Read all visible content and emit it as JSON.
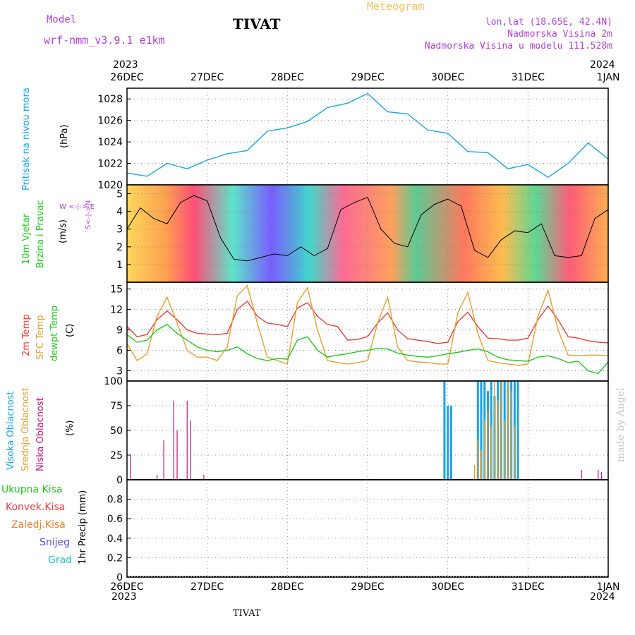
{
  "header": {
    "model_label": "Model",
    "model_name": "wrf-nmm_v3.9.1 e1km",
    "station": "TIVAT",
    "meteogram": "Meteogram",
    "lonlat": "lon,lat (18.65E, 42.4N)",
    "elevation": "Nadmorska Visina 2m",
    "model_elevation": "Nadmorska Visina u modelu 111.528m",
    "footer_station": "TIVAT",
    "credit": "made by Angel"
  },
  "time_axis": {
    "top_year_left": "2023",
    "top_year_right": "2024",
    "bottom_year_left": "2023",
    "bottom_year_right": "2024",
    "labels": [
      "26DEC",
      "27DEC",
      "28DEC",
      "29DEC",
      "30DEC",
      "31DEC",
      "1JAN"
    ]
  },
  "panel_labels": {
    "pressure": [
      "Pritisak na nivou mora",
      "(hPa)"
    ],
    "wind": [
      "10m Vjetar",
      "Brzina i Pravac",
      "(m/s)"
    ],
    "wind_compass": "W <-|-> E",
    "wind_compass_ns": "S<-|->N",
    "temp": [
      "2m Temp",
      "SFC Temp",
      "dewpt Temp",
      "(C)"
    ],
    "cloud": [
      "Visoka Oblacnost",
      "Srednja Oblacnost",
      "Niska Oblacnost",
      "(%)"
    ],
    "precip_legend": [
      "Ukupna Kisa",
      "Konvek.Kisa",
      "Zaledj.Kisa",
      "Snijeg",
      "Grad"
    ],
    "precip_axis": "1hr Precip (mm)"
  },
  "colors": {
    "pressure": "#1aa3e6",
    "temp2m": "#e8403c",
    "sfc": "#e0a030",
    "dewpt": "#22c822",
    "cloud_high": "#1aa3e6",
    "cloud_mid": "#e0a030",
    "cloud_low": "#c0157a",
    "model_label": "#b040d0",
    "meteogram": "#f0c060"
  },
  "chart_data": [
    {
      "type": "line",
      "name": "pressure",
      "ylim": [
        1020,
        1029
      ],
      "yticks": [
        "1020",
        "1022",
        "1024",
        "1026",
        "1028"
      ],
      "x_hours": [
        0,
        6,
        12,
        18,
        24,
        30,
        36,
        42,
        48,
        54,
        60,
        66,
        72,
        78,
        84,
        90,
        96,
        102,
        108,
        114,
        120,
        126,
        132,
        138,
        144
      ],
      "series": [
        {
          "values": [
            1021.1,
            1020.8,
            1022.0,
            1021.5,
            1022.3,
            1022.9,
            1023.2,
            1025.0,
            1025.3,
            1025.9,
            1027.2,
            1027.6,
            1028.5,
            1026.8,
            1026.6,
            1025.1,
            1024.8,
            1023.1,
            1023.0,
            1021.5,
            1021.9,
            1020.7,
            1022.0,
            1023.9,
            1022.4
          ]
        }
      ]
    },
    {
      "type": "line",
      "name": "wind",
      "ylim": [
        0,
        5.5
      ],
      "yticks": [
        "1",
        "2",
        "3",
        "4",
        "5"
      ],
      "x_hours": [
        0,
        4,
        8,
        12,
        16,
        20,
        24,
        28,
        32,
        36,
        40,
        44,
        48,
        52,
        56,
        60,
        64,
        68,
        72,
        76,
        80,
        84,
        88,
        92,
        96,
        100,
        104,
        108,
        112,
        116,
        120,
        124,
        128,
        132,
        136,
        140,
        144
      ],
      "series": [
        {
          "values": [
            3.0,
            4.2,
            3.6,
            3.3,
            4.5,
            4.9,
            4.6,
            2.5,
            1.3,
            1.2,
            1.4,
            1.6,
            1.5,
            2.0,
            1.5,
            1.9,
            4.1,
            4.5,
            4.8,
            3.0,
            2.2,
            2.0,
            3.8,
            4.4,
            4.7,
            4.3,
            1.8,
            1.4,
            2.4,
            2.9,
            2.8,
            3.3,
            1.5,
            1.4,
            1.5,
            3.6,
            4.1
          ]
        }
      ]
    },
    {
      "type": "line",
      "name": "temperature",
      "ylim": [
        1.5,
        16
      ],
      "yticks": [
        "3",
        "6",
        "9",
        "12",
        "15"
      ],
      "x_hours": [
        0,
        3,
        6,
        9,
        12,
        15,
        18,
        21,
        24,
        27,
        30,
        33,
        36,
        39,
        42,
        45,
        48,
        51,
        54,
        57,
        60,
        63,
        66,
        69,
        72,
        75,
        78,
        81,
        84,
        87,
        90,
        93,
        96,
        99,
        102,
        105,
        108,
        111,
        114,
        117,
        120,
        123,
        126,
        129,
        132,
        135,
        138,
        141,
        144
      ],
      "series": [
        {
          "name": "2m Temp",
          "values": [
            9.5,
            8.0,
            8.3,
            10.5,
            11.8,
            10.5,
            9.0,
            8.5,
            8.4,
            8.3,
            8.5,
            12.0,
            13.2,
            11.0,
            10.0,
            9.8,
            9.5,
            12.2,
            13.0,
            11.0,
            9.8,
            9.5,
            7.5,
            7.6,
            8.0,
            10.0,
            11.5,
            9.0,
            7.7,
            7.5,
            7.3,
            7.0,
            7.2,
            10.2,
            11.6,
            9.5,
            7.8,
            7.7,
            7.5,
            7.5,
            7.8,
            10.5,
            12.5,
            10.5,
            8.0,
            7.8,
            7.4,
            7.2,
            7.1
          ]
        },
        {
          "name": "SFC Temp",
          "values": [
            7.0,
            4.5,
            5.5,
            11.0,
            13.8,
            10.0,
            6.0,
            5.0,
            5.0,
            4.5,
            6.5,
            14.0,
            15.5,
            10.0,
            5.0,
            4.5,
            4.0,
            13.0,
            15.2,
            9.0,
            4.5,
            4.2,
            4.0,
            4.2,
            4.5,
            10.0,
            13.8,
            6.5,
            4.5,
            4.3,
            4.2,
            4.0,
            4.0,
            11.5,
            14.5,
            8.5,
            4.5,
            4.2,
            4.0,
            3.8,
            4.0,
            11.0,
            14.8,
            9.0,
            5.3,
            5.2,
            5.3,
            5.3,
            5.2
          ]
        },
        {
          "name": "dewpt Temp",
          "values": [
            8.3,
            7.2,
            7.5,
            9.0,
            9.8,
            8.5,
            7.5,
            6.5,
            6.0,
            5.8,
            6.0,
            6.5,
            5.5,
            4.8,
            4.5,
            4.8,
            4.7,
            7.5,
            8.0,
            6.0,
            5.0,
            5.3,
            5.5,
            5.8,
            6.0,
            6.3,
            6.2,
            5.6,
            5.3,
            5.1,
            5.0,
            5.2,
            5.5,
            5.7,
            6.0,
            6.2,
            5.8,
            5.0,
            4.6,
            4.5,
            4.4,
            5.0,
            5.2,
            4.8,
            4.2,
            4.4,
            3.0,
            2.6,
            4.3
          ]
        }
      ]
    },
    {
      "type": "bar",
      "name": "cloud",
      "ylim": [
        0,
        100
      ],
      "yticks": [
        "0",
        "25",
        "50",
        "75",
        "100"
      ],
      "bars": [
        {
          "h": 1,
          "low": 25
        },
        {
          "h": 9,
          "low": 5
        },
        {
          "h": 11,
          "low": 40
        },
        {
          "h": 14,
          "low": 80
        },
        {
          "h": 15,
          "low": 50
        },
        {
          "h": 18,
          "low": 80
        },
        {
          "h": 19,
          "low": 60
        },
        {
          "h": 23,
          "low": 5
        },
        {
          "h": 136,
          "low": 10
        },
        {
          "h": 141,
          "low": 10
        },
        {
          "h": 142,
          "low": 8
        },
        {
          "h": 95,
          "high": 100
        },
        {
          "h": 96,
          "high": 75
        },
        {
          "h": 97,
          "high": 75
        },
        {
          "h": 104,
          "mid": 15
        },
        {
          "h": 105,
          "high": 100,
          "mid": 40
        },
        {
          "h": 106,
          "high": 100,
          "mid": 30
        },
        {
          "h": 107,
          "high": 100,
          "mid": 60
        },
        {
          "h": 108,
          "high": 90,
          "mid": 70
        },
        {
          "h": 109,
          "high": 100,
          "mid": 55
        },
        {
          "h": 110,
          "high": 85,
          "mid": 100
        },
        {
          "h": 111,
          "high": 100,
          "mid": 80
        },
        {
          "h": 112,
          "high": 100,
          "mid": 100
        },
        {
          "h": 113,
          "high": 100,
          "mid": 60
        },
        {
          "h": 114,
          "high": 100,
          "mid": 100
        },
        {
          "h": 115,
          "high": 100,
          "mid": 90
        },
        {
          "h": 116,
          "high": 100,
          "mid": 55
        },
        {
          "h": 117,
          "high": 100
        }
      ]
    },
    {
      "type": "bar",
      "name": "precipitation",
      "ylim": [
        0,
        1
      ],
      "yticks": [
        "0",
        "0.2",
        "0.4",
        "0.6",
        "0.8"
      ],
      "values": []
    }
  ]
}
